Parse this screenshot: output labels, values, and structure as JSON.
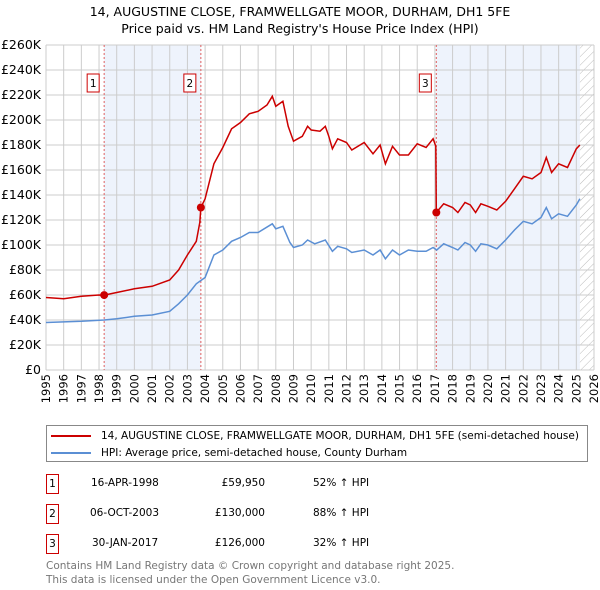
{
  "title_line1": "14, AUGUSTINE CLOSE, FRAMWELLGATE MOOR, DURHAM, DH1 5FE",
  "title_line2": "Price paid vs. HM Land Registry's House Price Index (HPI)",
  "colors": {
    "property": "#cc0000",
    "hpi": "#5b8fd4",
    "shade": "#eef3fc",
    "grid": "#cccccc"
  },
  "chart_data": {
    "type": "line",
    "ylim": [
      0,
      260000
    ],
    "xlim": [
      1995,
      2026
    ],
    "y_ticks": [
      0,
      20000,
      40000,
      60000,
      80000,
      100000,
      120000,
      140000,
      160000,
      180000,
      200000,
      220000,
      240000,
      260000
    ],
    "y_tick_labels": [
      "£0",
      "£20K",
      "£40K",
      "£60K",
      "£80K",
      "£100K",
      "£120K",
      "£140K",
      "£160K",
      "£180K",
      "£200K",
      "£220K",
      "£240K",
      "£260K"
    ],
    "x_ticks": [
      1995,
      1996,
      1997,
      1998,
      1999,
      2000,
      2001,
      2002,
      2003,
      2004,
      2005,
      2006,
      2007,
      2008,
      2009,
      2010,
      2011,
      2012,
      2013,
      2014,
      2015,
      2016,
      2017,
      2018,
      2019,
      2020,
      2021,
      2022,
      2023,
      2024,
      2025,
      2026
    ],
    "x_tick_labels": [
      "1995",
      "1996",
      "1997",
      "1998",
      "1999",
      "2000",
      "2001",
      "2002",
      "2003",
      "2004",
      "2005",
      "2006",
      "2007",
      "2008",
      "2009",
      "2010",
      "2011",
      "2012",
      "2013",
      "2014",
      "2015",
      "2016",
      "2017",
      "2018",
      "2019",
      "2020",
      "2021",
      "2022",
      "2023",
      "2024",
      "2025",
      "2026"
    ],
    "shaded_ranges": [
      [
        1998.29,
        2003.76
      ],
      [
        2017.08,
        2025.2
      ]
    ],
    "hatched_from": 2025.2,
    "series": [
      {
        "name": "14, AUGUSTINE CLOSE, FRAMWELLGATE MOOR, DURHAM, DH1 5FE (semi-detached house)",
        "color": "#cc0000",
        "x": [
          1995,
          1996,
          1997,
          1998,
          1998.29,
          1999,
          2000,
          2001,
          2002,
          2002.5,
          2003,
          2003.5,
          2003.7,
          2003.76,
          2004,
          2004.5,
          2005,
          2005.5,
          2006,
          2006.5,
          2007,
          2007.5,
          2007.8,
          2008,
          2008.4,
          2008.7,
          2009,
          2009.5,
          2009.8,
          2010,
          2010.5,
          2010.8,
          2011,
          2011.2,
          2011.5,
          2012,
          2012.3,
          2013,
          2013.5,
          2013.9,
          2014.2,
          2014.6,
          2015,
          2015.5,
          2016,
          2016.5,
          2016.9,
          2017.05,
          2017.08,
          2017.5,
          2018,
          2018.3,
          2018.7,
          2019,
          2019.3,
          2019.6,
          2020,
          2020.5,
          2021,
          2021.5,
          2022,
          2022.5,
          2023,
          2023.3,
          2023.6,
          2024,
          2024.5,
          2025,
          2025.2
        ],
        "values": [
          58000,
          57000,
          59000,
          60000,
          59950,
          62000,
          65000,
          67000,
          72000,
          80000,
          92000,
          103000,
          118000,
          130000,
          137000,
          165000,
          178000,
          193000,
          198000,
          205000,
          207000,
          212000,
          219000,
          211000,
          215000,
          195000,
          183000,
          187000,
          195000,
          192000,
          191000,
          195000,
          187000,
          177000,
          185000,
          182000,
          176000,
          182000,
          173000,
          180000,
          165000,
          179000,
          172000,
          172000,
          181000,
          178000,
          185000,
          179000,
          126000,
          133000,
          130000,
          126000,
          134000,
          132000,
          126000,
          133000,
          131000,
          128000,
          135000,
          145000,
          155000,
          153000,
          158000,
          170000,
          158000,
          165000,
          162000,
          177000,
          180000
        ]
      },
      {
        "name": "HPI: Average price, semi-detached house, County Durham",
        "color": "#5b8fd4",
        "x": [
          1995,
          1997,
          1998.29,
          1999,
          2000,
          2001,
          2002,
          2002.5,
          2003,
          2003.5,
          2004,
          2004.5,
          2005,
          2005.5,
          2006,
          2006.5,
          2007,
          2007.8,
          2008,
          2008.4,
          2008.8,
          2009,
          2009.5,
          2009.8,
          2010.2,
          2010.8,
          2011.2,
          2011.5,
          2012,
          2012.3,
          2013,
          2013.5,
          2013.9,
          2014.2,
          2014.6,
          2015,
          2015.5,
          2016,
          2016.5,
          2016.9,
          2017.1,
          2017.5,
          2018,
          2018.3,
          2018.7,
          2019,
          2019.3,
          2019.6,
          2020,
          2020.5,
          2021,
          2021.5,
          2022,
          2022.5,
          2023,
          2023.3,
          2023.6,
          2024,
          2024.5,
          2025,
          2025.2
        ],
        "values": [
          38000,
          39000,
          40000,
          41000,
          43000,
          44000,
          47000,
          53000,
          60000,
          69000,
          74000,
          92000,
          96000,
          103000,
          106000,
          110000,
          110000,
          117000,
          113000,
          115000,
          102000,
          98000,
          100000,
          104000,
          101000,
          104000,
          95000,
          99000,
          97000,
          94000,
          96000,
          92000,
          96000,
          89000,
          96000,
          92000,
          96000,
          95000,
          95000,
          98000,
          96000,
          101000,
          98000,
          96000,
          102000,
          100000,
          95000,
          101000,
          100000,
          97000,
          104000,
          112000,
          119000,
          117000,
          122000,
          130000,
          121000,
          125000,
          123000,
          132000,
          137000
        ]
      }
    ],
    "sales": [
      {
        "label": "1",
        "x": 1998.29,
        "value": 59950
      },
      {
        "label": "2",
        "x": 2003.76,
        "value": 130000
      },
      {
        "label": "3",
        "x": 2017.08,
        "value": 126000
      }
    ]
  },
  "legend": [
    {
      "label": "14, AUGUSTINE CLOSE, FRAMWELLGATE MOOR, DURHAM, DH1 5FE (semi-detached house)"
    },
    {
      "label": "HPI: Average price, semi-detached house, County Durham"
    }
  ],
  "transactions": [
    {
      "num": "1",
      "date": "16-APR-1998",
      "price": "£59,950",
      "hpi": "52% ↑ HPI"
    },
    {
      "num": "2",
      "date": "06-OCT-2003",
      "price": "£130,000",
      "hpi": "88% ↑ HPI"
    },
    {
      "num": "3",
      "date": "30-JAN-2017",
      "price": "£126,000",
      "hpi": "32% ↑ HPI"
    }
  ],
  "footer_line1": "Contains HM Land Registry data © Crown copyright and database right 2025.",
  "footer_line2": "This data is licensed under the Open Government Licence v3.0."
}
